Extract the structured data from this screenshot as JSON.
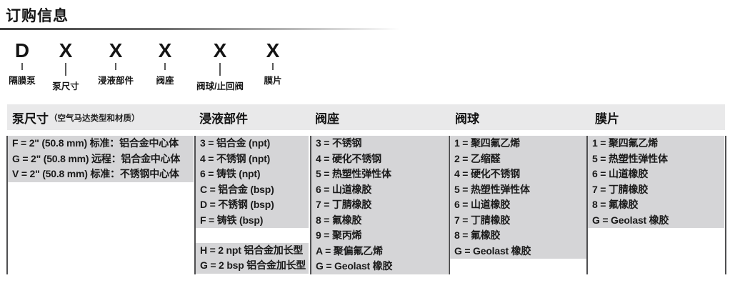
{
  "page": {
    "title": "订购信息"
  },
  "model_code": {
    "segments": [
      {
        "code": "D",
        "label": "隔膜泵"
      },
      {
        "code": "X",
        "label": "泵尺寸"
      },
      {
        "code": "X",
        "label": "浸液部件"
      },
      {
        "code": "X",
        "label": "阀座"
      },
      {
        "code": "X",
        "label": "阀球/止回阀"
      },
      {
        "code": "X",
        "label": "膜片"
      }
    ]
  },
  "item_separator": "=",
  "table": {
    "columns": [
      {
        "header": "泵尺寸",
        "header_note": "（空气马达类型和材质）",
        "groups": [
          [
            {
              "code": "F",
              "desc": "2\" (50.8 mm) 标准：铝合金中心体"
            },
            {
              "code": "G",
              "desc": "2\" (50.8 mm) 远程：铝合金中心体"
            },
            {
              "code": "V",
              "desc": "2\" (50.8 mm) 标准：不锈钢中心体"
            }
          ]
        ]
      },
      {
        "header": "浸液部件",
        "groups": [
          [
            {
              "code": "3",
              "desc": "铝合金 (npt)"
            },
            {
              "code": "4",
              "desc": "不锈钢 (npt)"
            },
            {
              "code": "6",
              "desc": "铸铁 (npt)"
            },
            {
              "code": "C",
              "desc": "铝合金 (bsp)"
            },
            {
              "code": "D",
              "desc": "不锈钢 (bsp)"
            },
            {
              "code": "F",
              "desc": "铸铁 (bsp)"
            }
          ],
          [
            {
              "code": "H",
              "desc": "2 npt 铝合金加长型"
            },
            {
              "code": "G",
              "desc": "2 bsp 铝合金加长型"
            }
          ]
        ]
      },
      {
        "header": "阀座",
        "groups": [
          [
            {
              "code": "3",
              "desc": "不锈钢"
            },
            {
              "code": "4",
              "desc": "硬化不锈钢"
            },
            {
              "code": "5",
              "desc": "热塑性弹性体"
            },
            {
              "code": "6",
              "desc": "山道橡胶"
            },
            {
              "code": "7",
              "desc": "丁腈橡胶"
            },
            {
              "code": "8",
              "desc": "氟橡胶"
            },
            {
              "code": "9",
              "desc": "聚丙烯"
            },
            {
              "code": "A",
              "desc": "聚偏氟乙烯"
            },
            {
              "code": "G",
              "desc": "Geolast 橡胶"
            }
          ]
        ]
      },
      {
        "header": "阀球",
        "groups": [
          [
            {
              "code": "1",
              "desc": "聚四氟乙烯"
            },
            {
              "code": "2",
              "desc": "乙缩醛"
            },
            {
              "code": "4",
              "desc": "硬化不锈钢"
            },
            {
              "code": "5",
              "desc": "热塑性弹性体"
            },
            {
              "code": "6",
              "desc": "山道橡胶"
            },
            {
              "code": "7",
              "desc": "丁腈橡胶"
            },
            {
              "code": "8",
              "desc": "氟橡胶"
            },
            {
              "code": "G",
              "desc": "Geolast 橡胶"
            }
          ]
        ]
      },
      {
        "header": "膜片",
        "groups": [
          [
            {
              "code": "1",
              "desc": "聚四氟乙烯"
            },
            {
              "code": "5",
              "desc": "热塑性弹性体"
            },
            {
              "code": "6",
              "desc": "山道橡胶"
            },
            {
              "code": "7",
              "desc": "丁腈橡胶"
            },
            {
              "code": "8",
              "desc": "氟橡胶"
            },
            {
              "code": "G",
              "desc": "Geolast 橡胶"
            }
          ]
        ]
      }
    ]
  },
  "colors": {
    "header_bg": "#e9e9ea",
    "cell_bg": "#d5d5d7",
    "divider": "#4f4f51",
    "text": "#1d1d1f"
  }
}
